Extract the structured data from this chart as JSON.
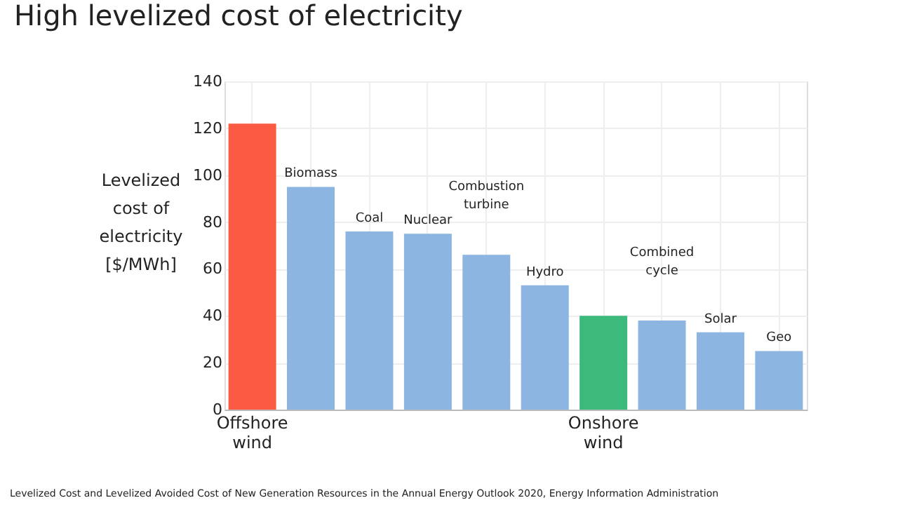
{
  "chart_data": {
    "type": "bar",
    "title": "High levelized cost of electricity",
    "ylabel": "Levelized cost of electricity [$/MWh]",
    "categories": [
      "Offshore wind",
      "Biomass",
      "Coal",
      "Nuclear",
      "Combustion turbine",
      "Hydro",
      "Onshore wind",
      "Combined cycle",
      "Solar",
      "Geo"
    ],
    "values": [
      122,
      95,
      76,
      75,
      66,
      53,
      40,
      38,
      33,
      25
    ],
    "colors": [
      "#fb5a43",
      "#8db5e1",
      "#8db5e1",
      "#8db5e1",
      "#8db5e1",
      "#8db5e1",
      "#3cba7c",
      "#8db5e1",
      "#8db5e1",
      "#8db5e1"
    ],
    "ylim": [
      0,
      140
    ],
    "yticks": [
      0,
      20,
      40,
      60,
      80,
      100,
      120,
      140
    ],
    "grid": true,
    "annotations": [
      "Levelized Cost and Levelized Avoided Cost of New Generation Resources in the Annual Energy Outlook 2020, Energy Information Administration"
    ]
  }
}
